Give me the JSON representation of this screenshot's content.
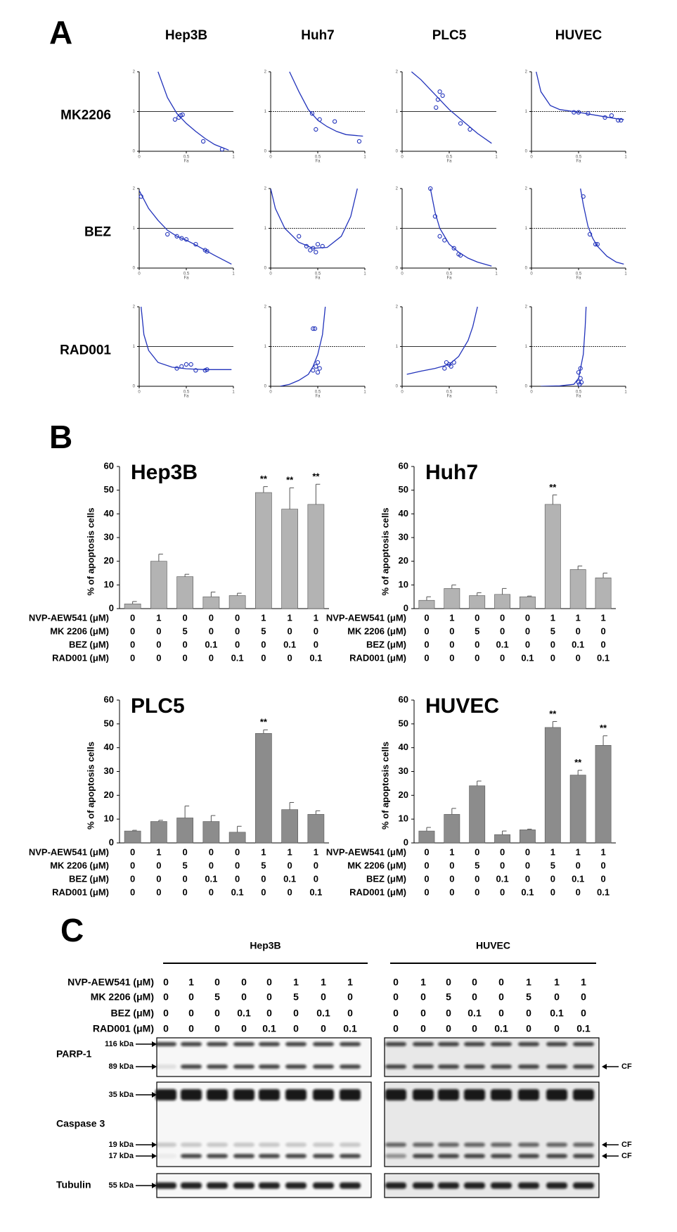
{
  "panels": [
    "A",
    "B",
    "C"
  ],
  "panel_a": {
    "columns": [
      "Hep3B",
      "Huh7",
      "PLC5",
      "HUVEC"
    ],
    "rows": [
      "MK2206",
      "BEZ",
      "RAD001"
    ]
  },
  "chart_data": [
    {
      "type": "scatter",
      "xlabel": "Fa",
      "xlim": [
        0,
        1
      ],
      "ylim": [
        0,
        2
      ],
      "xticks": [
        0,
        0.5,
        1
      ],
      "yticks": [
        0,
        1,
        2
      ],
      "reference_line": 1,
      "color": "#2233bb",
      "x": [
        0.38,
        0.42,
        0.44,
        0.46,
        0.68,
        0.88
      ],
      "y": [
        0.8,
        0.85,
        0.9,
        0.92,
        0.25,
        0.05
      ],
      "fit_x": [
        0.2,
        0.3,
        0.4,
        0.5,
        0.6,
        0.7,
        0.8,
        0.95
      ],
      "fit_y": [
        2,
        1.35,
        0.95,
        0.7,
        0.5,
        0.32,
        0.17,
        0.03
      ]
    },
    {
      "type": "scatter",
      "xlabel": "Fa",
      "xlim": [
        0,
        1
      ],
      "ylim": [
        0,
        2
      ],
      "xticks": [
        0,
        0.5,
        1
      ],
      "yticks": [
        0,
        1,
        2
      ],
      "reference_line": 1,
      "color": "#2233bb",
      "x": [
        0.44,
        0.48,
        0.52,
        0.68,
        0.94
      ],
      "y": [
        0.95,
        0.55,
        0.8,
        0.75,
        0.25
      ],
      "fit_x": [
        0.2,
        0.3,
        0.4,
        0.5,
        0.6,
        0.7,
        0.8,
        0.98
      ],
      "fit_y": [
        2,
        1.5,
        1.05,
        0.78,
        0.62,
        0.5,
        0.42,
        0.38
      ]
    },
    {
      "type": "scatter",
      "xlabel": "Fa",
      "xlim": [
        0,
        1
      ],
      "ylim": [
        0,
        2
      ],
      "xticks": [
        0,
        0.5,
        1
      ],
      "yticks": [
        0,
        1,
        2
      ],
      "reference_line": 1,
      "color": "#2233bb",
      "x": [
        0.36,
        0.38,
        0.4,
        0.43,
        0.62,
        0.72
      ],
      "y": [
        1.1,
        1.3,
        1.5,
        1.4,
        0.7,
        0.55
      ],
      "fit_x": [
        0.1,
        0.2,
        0.3,
        0.4,
        0.5,
        0.6,
        0.7,
        0.8,
        0.95
      ],
      "fit_y": [
        2,
        1.8,
        1.55,
        1.3,
        1.05,
        0.85,
        0.65,
        0.45,
        0.2
      ]
    },
    {
      "type": "scatter",
      "xlabel": "Fa",
      "xlim": [
        0,
        1
      ],
      "ylim": [
        0,
        2
      ],
      "xticks": [
        0,
        0.5,
        1
      ],
      "yticks": [
        0,
        1,
        2
      ],
      "reference_line": 1,
      "color": "#2233bb",
      "x": [
        0.45,
        0.5,
        0.6,
        0.78,
        0.85,
        0.92,
        0.95
      ],
      "y": [
        0.98,
        0.98,
        0.95,
        0.85,
        0.9,
        0.78,
        0.78
      ],
      "fit_x": [
        0.05,
        0.1,
        0.2,
        0.3,
        0.5,
        0.7,
        0.9,
        0.98
      ],
      "fit_y": [
        2,
        1.5,
        1.15,
        1.05,
        0.98,
        0.9,
        0.82,
        0.8
      ]
    },
    {
      "type": "scatter",
      "xlabel": "Fa",
      "xlim": [
        0,
        1
      ],
      "ylim": [
        0,
        2
      ],
      "xticks": [
        0,
        0.5,
        1
      ],
      "yticks": [
        0,
        1,
        2
      ],
      "reference_line": 1,
      "color": "#2233bb",
      "x": [
        0.02,
        0.3,
        0.4,
        0.45,
        0.5,
        0.6,
        0.7,
        0.72
      ],
      "y": [
        1.8,
        0.85,
        0.8,
        0.75,
        0.72,
        0.6,
        0.45,
        0.42
      ],
      "fit_x": [
        0.0,
        0.1,
        0.2,
        0.3,
        0.4,
        0.5,
        0.6,
        0.7,
        0.8,
        0.98
      ],
      "fit_y": [
        1.95,
        1.5,
        1.2,
        0.95,
        0.8,
        0.7,
        0.58,
        0.45,
        0.32,
        0.1
      ]
    },
    {
      "type": "scatter",
      "xlabel": "Fa",
      "xlim": [
        0,
        1
      ],
      "ylim": [
        0,
        2
      ],
      "xticks": [
        0,
        0.5,
        1
      ],
      "yticks": [
        0,
        1,
        2
      ],
      "reference_line": 1,
      "color": "#2233bb",
      "x": [
        0.3,
        0.38,
        0.42,
        0.45,
        0.48,
        0.5,
        0.55
      ],
      "y": [
        0.8,
        0.55,
        0.45,
        0.5,
        0.4,
        0.6,
        0.55
      ],
      "fit_x": [
        0.0,
        0.05,
        0.15,
        0.3,
        0.45,
        0.6,
        0.75,
        0.85,
        0.92
      ],
      "fit_y": [
        2,
        1.5,
        1.0,
        0.65,
        0.5,
        0.52,
        0.8,
        1.3,
        2
      ]
    },
    {
      "type": "scatter",
      "xlabel": "Fa",
      "xlim": [
        0,
        1
      ],
      "ylim": [
        0,
        2
      ],
      "xticks": [
        0,
        0.5,
        1
      ],
      "yticks": [
        0,
        1,
        2
      ],
      "reference_line": 1,
      "color": "#2233bb",
      "x": [
        0.3,
        0.35,
        0.4,
        0.45,
        0.55,
        0.6,
        0.62
      ],
      "y": [
        2,
        1.3,
        0.8,
        0.7,
        0.5,
        0.35,
        0.32
      ],
      "fit_x": [
        0.3,
        0.35,
        0.4,
        0.5,
        0.6,
        0.7,
        0.8,
        0.95
      ],
      "fit_y": [
        2,
        1.4,
        1.0,
        0.6,
        0.4,
        0.25,
        0.15,
        0.05
      ]
    },
    {
      "type": "scatter",
      "xlabel": "Fa",
      "xlim": [
        0,
        1
      ],
      "ylim": [
        0,
        2
      ],
      "xticks": [
        0,
        0.5,
        1
      ],
      "yticks": [
        0,
        1,
        2
      ],
      "reference_line": 1,
      "color": "#2233bb",
      "x": [
        0.55,
        0.62,
        0.68,
        0.7
      ],
      "y": [
        1.8,
        0.85,
        0.6,
        0.6
      ],
      "fit_x": [
        0.52,
        0.55,
        0.6,
        0.65,
        0.7,
        0.8,
        0.9,
        0.98
      ],
      "fit_y": [
        2,
        1.6,
        1.05,
        0.75,
        0.55,
        0.3,
        0.15,
        0.1
      ]
    },
    {
      "type": "scatter",
      "xlabel": "Fa",
      "xlim": [
        0,
        1
      ],
      "ylim": [
        0,
        2
      ],
      "xticks": [
        0,
        0.5,
        1
      ],
      "yticks": [
        0,
        1,
        2
      ],
      "reference_line": 1,
      "color": "#2233bb",
      "x": [
        0.4,
        0.45,
        0.5,
        0.55,
        0.6,
        0.7,
        0.72
      ],
      "y": [
        0.45,
        0.5,
        0.55,
        0.55,
        0.4,
        0.4,
        0.42
      ],
      "fit_x": [
        0.02,
        0.05,
        0.1,
        0.2,
        0.35,
        0.5,
        0.7,
        0.98
      ],
      "fit_y": [
        2,
        1.3,
        0.9,
        0.6,
        0.48,
        0.44,
        0.42,
        0.42
      ]
    },
    {
      "type": "scatter",
      "xlabel": "Fa",
      "xlim": [
        0,
        1
      ],
      "ylim": [
        0,
        2
      ],
      "xticks": [
        0,
        0.5,
        1
      ],
      "yticks": [
        0,
        1,
        2
      ],
      "reference_line": 1,
      "color": "#2233bb",
      "x": [
        0.45,
        0.47,
        0.5,
        0.45,
        0.5,
        0.52,
        0.48
      ],
      "y": [
        1.45,
        1.45,
        0.6,
        0.4,
        0.35,
        0.45,
        0.5
      ],
      "fit_x": [
        0.1,
        0.2,
        0.3,
        0.4,
        0.45,
        0.5,
        0.55,
        0.58
      ],
      "fit_y": [
        0,
        0.05,
        0.15,
        0.3,
        0.5,
        0.8,
        1.3,
        2
      ]
    },
    {
      "type": "scatter",
      "xlabel": "Fa",
      "xlim": [
        0,
        1
      ],
      "ylim": [
        0,
        2
      ],
      "xticks": [
        0,
        0.5,
        1
      ],
      "yticks": [
        0,
        1,
        2
      ],
      "reference_line": 1,
      "color": "#2233bb",
      "x": [
        0.45,
        0.47,
        0.5,
        0.52,
        0.55
      ],
      "y": [
        0.45,
        0.6,
        0.55,
        0.5,
        0.6
      ],
      "fit_x": [
        0.05,
        0.2,
        0.35,
        0.5,
        0.6,
        0.7,
        0.75,
        0.8
      ],
      "fit_y": [
        0.3,
        0.38,
        0.45,
        0.55,
        0.75,
        1.15,
        1.5,
        2
      ]
    },
    {
      "type": "scatter",
      "xlabel": "Fa",
      "xlim": [
        0,
        1
      ],
      "ylim": [
        0,
        2
      ],
      "xticks": [
        0,
        0.5,
        1
      ],
      "yticks": [
        0,
        1,
        2
      ],
      "reference_line": 1,
      "color": "#2233bb",
      "x": [
        0.5,
        0.52,
        0.5,
        0.52,
        0.51,
        0.53
      ],
      "y": [
        0.1,
        0.2,
        0.35,
        0.45,
        0.05,
        0.1
      ],
      "fit_x": [
        0.1,
        0.3,
        0.45,
        0.5,
        0.55,
        0.57,
        0.58
      ],
      "fit_y": [
        0,
        0.01,
        0.05,
        0.2,
        0.8,
        1.5,
        2
      ]
    },
    {
      "type": "bar",
      "title": "Hep3B",
      "ylabel": "% of apoptosis cells",
      "ylim": [
        0,
        60
      ],
      "yticks": [
        0,
        10,
        20,
        30,
        40,
        50,
        60
      ],
      "color": "#b3b3b3",
      "values": [
        2,
        20,
        13.5,
        5,
        5.5,
        49,
        42,
        44
      ],
      "errors": [
        1,
        3,
        1,
        2,
        1,
        2.5,
        9,
        8.5
      ],
      "significance": [
        null,
        null,
        null,
        null,
        null,
        "**",
        "**",
        "**"
      ],
      "treatments": {
        "labels": [
          "NVP-AEW541 (μM)",
          "MK 2206 (μM)",
          "BEZ (μM)",
          "RAD001 (μM)"
        ],
        "values": [
          [
            0,
            1,
            0,
            0,
            0,
            1,
            1,
            1
          ],
          [
            0,
            0,
            5,
            0,
            0,
            5,
            0,
            0
          ],
          [
            0,
            0,
            0,
            0.1,
            0,
            0,
            0.1,
            0
          ],
          [
            0,
            0,
            0,
            0,
            0.1,
            0,
            0,
            0.1
          ]
        ]
      }
    },
    {
      "type": "bar",
      "title": "Huh7",
      "ylabel": "% of apoptosis cells",
      "ylim": [
        0,
        60
      ],
      "yticks": [
        0,
        10,
        20,
        30,
        40,
        50,
        60
      ],
      "color": "#b3b3b3",
      "values": [
        3.5,
        8.5,
        5.5,
        6,
        5,
        44,
        16.5,
        13
      ],
      "errors": [
        1.5,
        1.5,
        1.2,
        2.5,
        0.3,
        4,
        1.5,
        2
      ],
      "significance": [
        null,
        null,
        null,
        null,
        null,
        "**",
        null,
        null
      ],
      "treatments": {
        "labels": [
          "NVP-AEW541 (μM)",
          "MK 2206 (μM)",
          "BEZ (μM)",
          "RAD001 (μM)"
        ],
        "values": [
          [
            0,
            1,
            0,
            0,
            0,
            1,
            1,
            1
          ],
          [
            0,
            0,
            5,
            0,
            0,
            5,
            0,
            0
          ],
          [
            0,
            0,
            0,
            0.1,
            0,
            0,
            0.1,
            0
          ],
          [
            0,
            0,
            0,
            0,
            0.1,
            0,
            0,
            0.1
          ]
        ]
      }
    },
    {
      "type": "bar",
      "title": "PLC5",
      "ylabel": "% of apoptosis cells",
      "ylim": [
        0,
        60
      ],
      "yticks": [
        0,
        10,
        20,
        30,
        40,
        50,
        60
      ],
      "color": "#8c8c8c",
      "values": [
        5,
        9,
        10.5,
        9,
        4.5,
        46,
        14,
        12
      ],
      "errors": [
        0.3,
        0.5,
        5,
        2.5,
        2.5,
        1.5,
        3,
        1.5
      ],
      "significance": [
        null,
        null,
        null,
        null,
        null,
        "**",
        null,
        null
      ],
      "treatments": {
        "labels": [
          "NVP-AEW541 (μM)",
          "MK 2206 (μM)",
          "BEZ (μM)",
          "RAD001 (μM)"
        ],
        "values": [
          [
            0,
            1,
            0,
            0,
            0,
            1,
            1,
            1
          ],
          [
            0,
            0,
            5,
            0,
            0,
            5,
            0,
            0
          ],
          [
            0,
            0,
            0,
            0.1,
            0,
            0,
            0.1,
            0
          ],
          [
            0,
            0,
            0,
            0,
            0.1,
            0,
            0,
            0.1
          ]
        ]
      }
    },
    {
      "type": "bar",
      "title": "HUVEC",
      "ylabel": "% of apoptosis cells",
      "ylim": [
        0,
        60
      ],
      "yticks": [
        0,
        10,
        20,
        30,
        40,
        50,
        60
      ],
      "color": "#8c8c8c",
      "values": [
        5,
        12,
        24,
        3.5,
        5.5,
        48.5,
        28.5,
        41
      ],
      "errors": [
        1.5,
        2.5,
        2,
        1.5,
        0.3,
        2.5,
        2,
        4
      ],
      "significance": [
        null,
        null,
        null,
        null,
        null,
        "**",
        "**",
        "**"
      ],
      "treatments": {
        "labels": [
          "NVP-AEW541 (μM)",
          "MK 2206 (μM)",
          "BEZ (μM)",
          "RAD001 (μM)"
        ],
        "values": [
          [
            0,
            1,
            0,
            0,
            0,
            1,
            1,
            1
          ],
          [
            0,
            0,
            5,
            0,
            0,
            5,
            0,
            0
          ],
          [
            0,
            0,
            0,
            0.1,
            0,
            0,
            0.1,
            0
          ],
          [
            0,
            0,
            0,
            0,
            0.1,
            0,
            0,
            0.1
          ]
        ]
      }
    }
  ],
  "blot": {
    "groups": [
      "Hep3B",
      "HUVEC"
    ],
    "treatment_labels": [
      "NVP-AEW541 (μM)",
      "MK 2206 (μM)",
      "BEZ (μM)",
      "RAD001 (μM)"
    ],
    "treatment_values": [
      [
        0,
        1,
        0,
        0,
        0,
        1,
        1,
        1
      ],
      [
        0,
        0,
        5,
        0,
        0,
        5,
        0,
        0
      ],
      [
        0,
        0,
        0,
        0.1,
        0,
        0,
        0.1,
        0
      ],
      [
        0,
        0,
        0,
        0,
        0.1,
        0,
        0,
        0.1
      ]
    ],
    "blots": [
      {
        "name": "PARP-1",
        "markers": [
          "116 kDa",
          "89 kDa"
        ]
      },
      {
        "name": "Caspase 3",
        "markers": [
          "35 kDa",
          "19 kDa",
          "17 kDa"
        ]
      },
      {
        "name": "Tubulin",
        "markers": [
          "55 kDa"
        ]
      }
    ],
    "cleaved_label": "CF"
  }
}
